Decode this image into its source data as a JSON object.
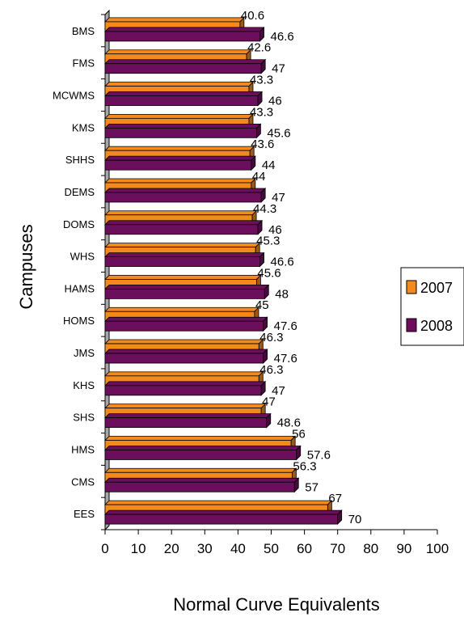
{
  "chart_data": {
    "type": "bar",
    "orientation": "horizontal",
    "title": "",
    "xlabel": "Normal Curve Equivalents",
    "ylabel": "Campuses",
    "xlim": [
      0,
      100
    ],
    "xticks": [
      0,
      10,
      20,
      30,
      40,
      50,
      60,
      70,
      80,
      90,
      100
    ],
    "categories": [
      "BMS",
      "FMS",
      "MCWMS",
      "KMS",
      "SHHS",
      "DEMS",
      "DOMS",
      "WHS",
      "HAMS",
      "HOMS",
      "JMS",
      "KHS",
      "SHS",
      "HMS",
      "CMS",
      "EES"
    ],
    "series": [
      {
        "name": "2007",
        "color": "#f28a1e",
        "values": [
          40.6,
          42.6,
          43.3,
          43.3,
          43.6,
          44,
          44.3,
          45.3,
          45.6,
          45,
          46.3,
          46.3,
          47,
          56,
          56.3,
          67
        ]
      },
      {
        "name": "2008",
        "color": "#6b0f5c",
        "values": [
          46.6,
          47,
          46,
          45.6,
          44,
          47,
          46,
          46.6,
          48,
          47.6,
          47.6,
          47,
          48.6,
          57.6,
          57,
          70
        ]
      }
    ],
    "legend": "right",
    "grid": false
  }
}
